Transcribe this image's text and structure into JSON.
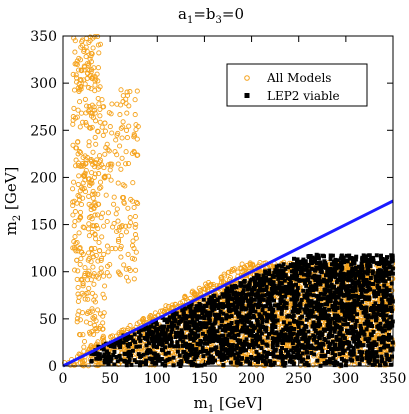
{
  "chart_data": {
    "type": "scatter",
    "title": "a₁=b₃=0",
    "title_parts": {
      "a": "a",
      "a_sub": "1",
      "mid": "=b",
      "b_sub": "3",
      "end": "=0"
    },
    "xlabel": "m₁ [GeV]",
    "xlabel_parts": {
      "main": "m",
      "sub": "1",
      "unit": " [GeV]"
    },
    "ylabel": "m₂ [GeV]",
    "ylabel_parts": {
      "main": "m",
      "sub": "2",
      "unit": " [GeV]"
    },
    "xlim": [
      0,
      350
    ],
    "ylim": [
      0,
      350
    ],
    "x_ticks": [
      0,
      50,
      100,
      150,
      200,
      250,
      300,
      350
    ],
    "y_ticks": [
      0,
      50,
      100,
      150,
      200,
      250,
      300,
      350
    ],
    "grid": false,
    "legend_position": "top-right",
    "series": [
      {
        "name": "All Models",
        "marker": "open-circle",
        "color": "#f5a21b",
        "regions": [
          {
            "x_range": [
              10,
              40
            ],
            "y_range": [
              90,
              350
            ],
            "count": 300
          },
          {
            "x_range": [
              40,
              80
            ],
            "y_range": [
              90,
              300
            ],
            "count": 160
          },
          {
            "x_range": [
              15,
              45
            ],
            "y_range": [
              0,
              90
            ],
            "count": 80
          },
          {
            "x_range": [
              0,
              350
            ],
            "y_range": [
              0,
              110
            ],
            "count": 2600,
            "max_slope": 0.55
          }
        ]
      },
      {
        "name": "LEP2 viable",
        "marker": "filled-square",
        "color": "#000000",
        "regions": [
          {
            "x_range": [
              30,
              350
            ],
            "y_range": [
              0,
              118
            ],
            "count": 2400,
            "max_slope": 0.45
          }
        ]
      },
      {
        "name": "",
        "type": "line",
        "color": "#1a1aff",
        "x": [
          0,
          350
        ],
        "y": [
          0,
          175
        ]
      }
    ]
  }
}
